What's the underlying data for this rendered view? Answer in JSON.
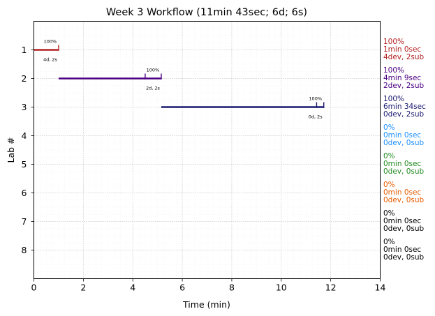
{
  "chart_data": {
    "type": "gantt",
    "title": "Week 3 Workflow (11min 43sec; 6d; 6s)",
    "xlabel": "Time (min)",
    "ylabel": "Lab #",
    "xlim": [
      0,
      14
    ],
    "ylim": [
      0,
      9
    ],
    "grid": true,
    "xticks": [
      0,
      2,
      4,
      6,
      8,
      10,
      12,
      14
    ],
    "yticks": [
      1,
      2,
      3,
      4,
      5,
      6,
      7,
      8
    ],
    "labs": [
      {
        "lab": 1,
        "start": 0.0,
        "end": 1.0,
        "color": "#b22222",
        "markers": [
          1.0
        ],
        "pct_small": "100%",
        "ds_small": "4d, 2s",
        "pct": "100%",
        "time": "1min 0sec",
        "devsub": "4dev, 2sub"
      },
      {
        "lab": 2,
        "start": 1.0,
        "end": 5.15,
        "color": "#4b0082",
        "markers": [
          4.5,
          5.15
        ],
        "pct_small": "100%",
        "ds_small": "2d, 2s",
        "pct": "100%",
        "time": "4min 9sec",
        "devsub": "2dev, 2sub"
      },
      {
        "lab": 3,
        "start": 5.15,
        "end": 11.72,
        "color": "#191970",
        "markers": [
          11.43,
          11.72
        ],
        "pct_small": "100%",
        "ds_small": "0d, 2s",
        "pct": "100%",
        "time": "6min 34sec",
        "devsub": "0dev, 2sub"
      },
      {
        "lab": 4,
        "color": "#1e90ff",
        "pct": "0%",
        "time": "0min 0sec",
        "devsub": "0dev, 0sub"
      },
      {
        "lab": 5,
        "color": "#228b22",
        "pct": "0%",
        "time": "0min 0sec",
        "devsub": "0dev, 0sub"
      },
      {
        "lab": 6,
        "color": "#e65c00",
        "pct": "0%",
        "time": "0min 0sec",
        "devsub": "0dev, 0sub"
      },
      {
        "lab": 7,
        "color": "#000000",
        "pct": "0%",
        "time": "0min 0sec",
        "devsub": "0dev, 0sub"
      },
      {
        "lab": 8,
        "color": "#000000",
        "pct": "0%",
        "time": "0min 0sec",
        "devsub": "0dev, 0sub"
      }
    ]
  }
}
